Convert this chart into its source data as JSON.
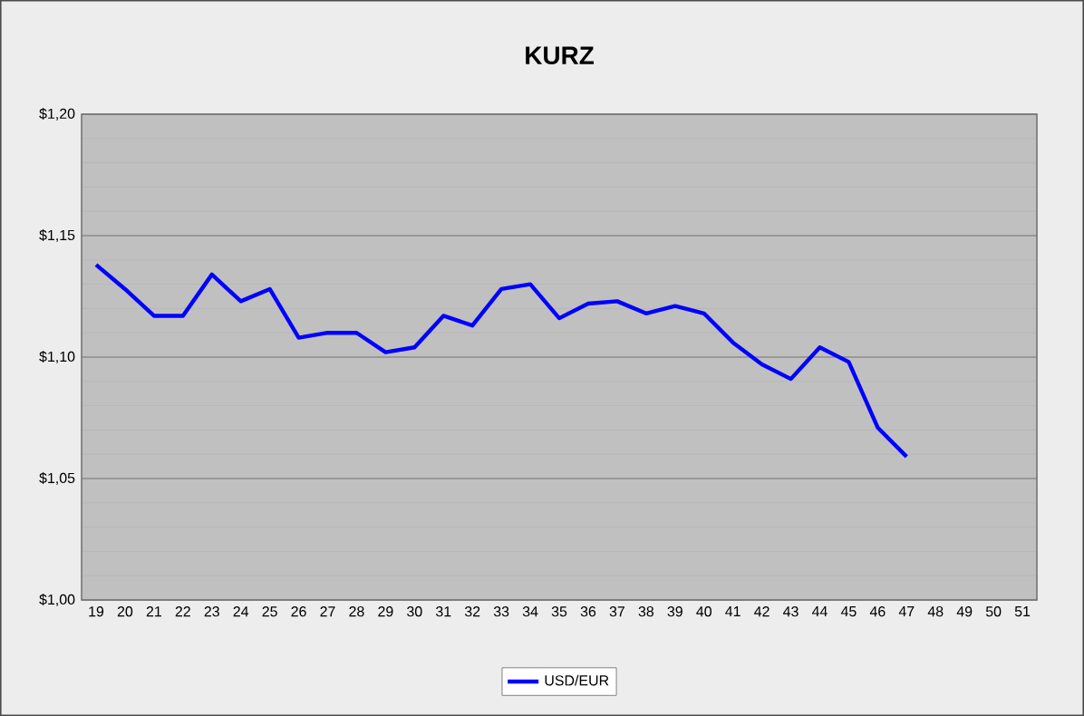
{
  "chart_data": {
    "type": "line",
    "title": "KURZ",
    "categories": [
      "19",
      "20",
      "21",
      "22",
      "23",
      "24",
      "25",
      "26",
      "27",
      "28",
      "29",
      "30",
      "31",
      "32",
      "33",
      "34",
      "35",
      "36",
      "37",
      "38",
      "39",
      "40",
      "41",
      "42",
      "43",
      "44",
      "45",
      "46",
      "47",
      "48",
      "49",
      "50",
      "51"
    ],
    "series": [
      {
        "name": "USD/EUR",
        "color": "#0000ff",
        "values": [
          1.138,
          1.128,
          1.117,
          1.117,
          1.134,
          1.123,
          1.128,
          1.108,
          1.11,
          1.11,
          1.102,
          1.104,
          1.117,
          1.113,
          1.128,
          1.13,
          1.116,
          1.122,
          1.123,
          1.118,
          1.121,
          1.118,
          1.106,
          1.097,
          1.091,
          1.104,
          1.098,
          1.071,
          1.059,
          null,
          null,
          null,
          null
        ]
      }
    ],
    "ylim": [
      1.0,
      1.2
    ],
    "yticks": [
      {
        "value": 1.0,
        "label": "$1,00"
      },
      {
        "value": 1.05,
        "label": "$1,05"
      },
      {
        "value": 1.1,
        "label": "$1,10"
      },
      {
        "value": 1.15,
        "label": "$1,15"
      },
      {
        "value": 1.2,
        "label": "$1,20"
      }
    ],
    "grid": "y",
    "legend": "bottom",
    "marker": "none",
    "line_style": "solid"
  }
}
